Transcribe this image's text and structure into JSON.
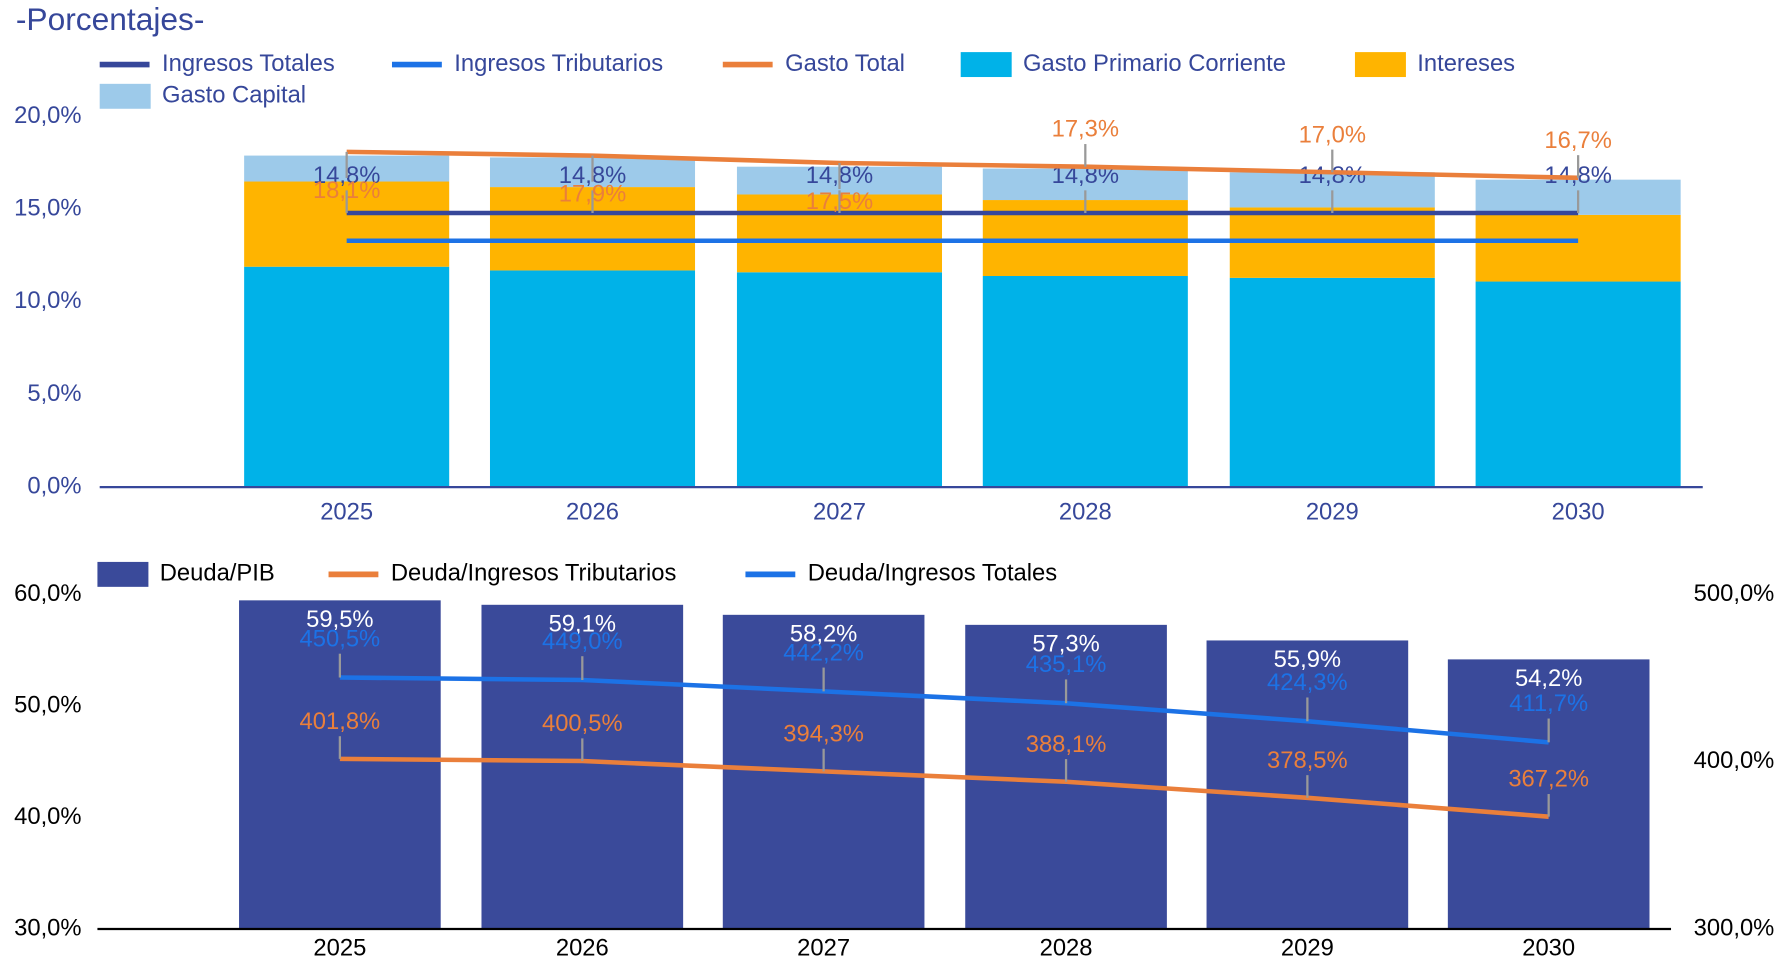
{
  "chart_data": [
    {
      "type": "stacked-bar-line",
      "title": "-Porcentajes-",
      "categories": [
        "2025",
        "2026",
        "2027",
        "2028",
        "2029",
        "2030"
      ],
      "ylim": [
        0,
        20
      ],
      "yticks": [
        {
          "value": 0,
          "label": "0,0%"
        },
        {
          "value": 5,
          "label": "5,0%"
        },
        {
          "value": 10,
          "label": "10,0%"
        },
        {
          "value": 15,
          "label": "15,0%"
        },
        {
          "value": 20,
          "label": "20,0%"
        }
      ],
      "series": [
        {
          "name": "Ingresos Totales",
          "type": "line",
          "color": "#36479a",
          "values": [
            14.8,
            14.8,
            14.8,
            14.8,
            14.8,
            14.8
          ],
          "value_labels": [
            "14,8%",
            "14,8%",
            "14,8%",
            "14,8%",
            "14,8%",
            "14,8%"
          ]
        },
        {
          "name": "Ingresos Tributarios",
          "type": "line",
          "color": "#1c72e6",
          "values": [
            13.3,
            13.3,
            13.3,
            13.3,
            13.3,
            13.3
          ]
        },
        {
          "name": "Gasto Total",
          "type": "line",
          "color": "#ea7f3b",
          "values": [
            18.1,
            17.9,
            17.5,
            17.3,
            17.0,
            16.7
          ],
          "value_labels": [
            "18,1%",
            "17,9%",
            "17,5%",
            "17,3%",
            "17,0%",
            "16,7%"
          ]
        },
        {
          "name": "Gasto Primario Corriente",
          "type": "bar",
          "color": "#00b2e8",
          "values": [
            11.9,
            11.7,
            11.6,
            11.4,
            11.3,
            11.1
          ]
        },
        {
          "name": "Intereses",
          "type": "bar",
          "color": "#ffb400",
          "values": [
            4.6,
            4.5,
            4.2,
            4.1,
            3.8,
            3.6
          ]
        },
        {
          "name": "Gasto Capital",
          "type": "bar",
          "color": "#9dcaea",
          "values": [
            1.4,
            1.6,
            1.5,
            1.7,
            1.9,
            1.9
          ]
        }
      ]
    },
    {
      "type": "bar-line",
      "categories": [
        "2025",
        "2026",
        "2027",
        "2028",
        "2029",
        "2030"
      ],
      "ylim": [
        30,
        60
      ],
      "yticks": [
        {
          "value": 30,
          "label": "30,0%"
        },
        {
          "value": 40,
          "label": "40,0%"
        },
        {
          "value": 50,
          "label": "50,0%"
        },
        {
          "value": 60,
          "label": "60,0%"
        }
      ],
      "y2lim": [
        300,
        500
      ],
      "y2ticks": [
        {
          "value": 300,
          "label": "300,0%"
        },
        {
          "value": 400,
          "label": "400,0%"
        },
        {
          "value": 500,
          "label": "500,0%"
        }
      ],
      "series": [
        {
          "name": "Deuda/PIB",
          "type": "bar",
          "color": "#3a4a9a",
          "values": [
            59.5,
            59.1,
            58.2,
            57.3,
            55.9,
            54.2
          ],
          "value_labels": [
            "59,5%",
            "59,1%",
            "58,2%",
            "57,3%",
            "55,9%",
            "54,2%"
          ]
        },
        {
          "name": "Deuda/Ingresos Tributarios",
          "type": "line",
          "axis": "y2",
          "color": "#ea7f3b",
          "values": [
            401.8,
            400.5,
            394.3,
            388.1,
            378.5,
            367.2
          ],
          "value_labels": [
            "401,8%",
            "400,5%",
            "394,3%",
            "388,1%",
            "378,5%",
            "367,2%"
          ]
        },
        {
          "name": "Deuda/Ingresos Totales",
          "type": "line",
          "axis": "y2",
          "color": "#1c72e6",
          "values": [
            450.5,
            449.0,
            442.2,
            435.1,
            424.3,
            411.7
          ],
          "value_labels": [
            "450,5%",
            "449,0%",
            "442,2%",
            "435,1%",
            "424,3%",
            "411,7%"
          ]
        }
      ]
    }
  ]
}
